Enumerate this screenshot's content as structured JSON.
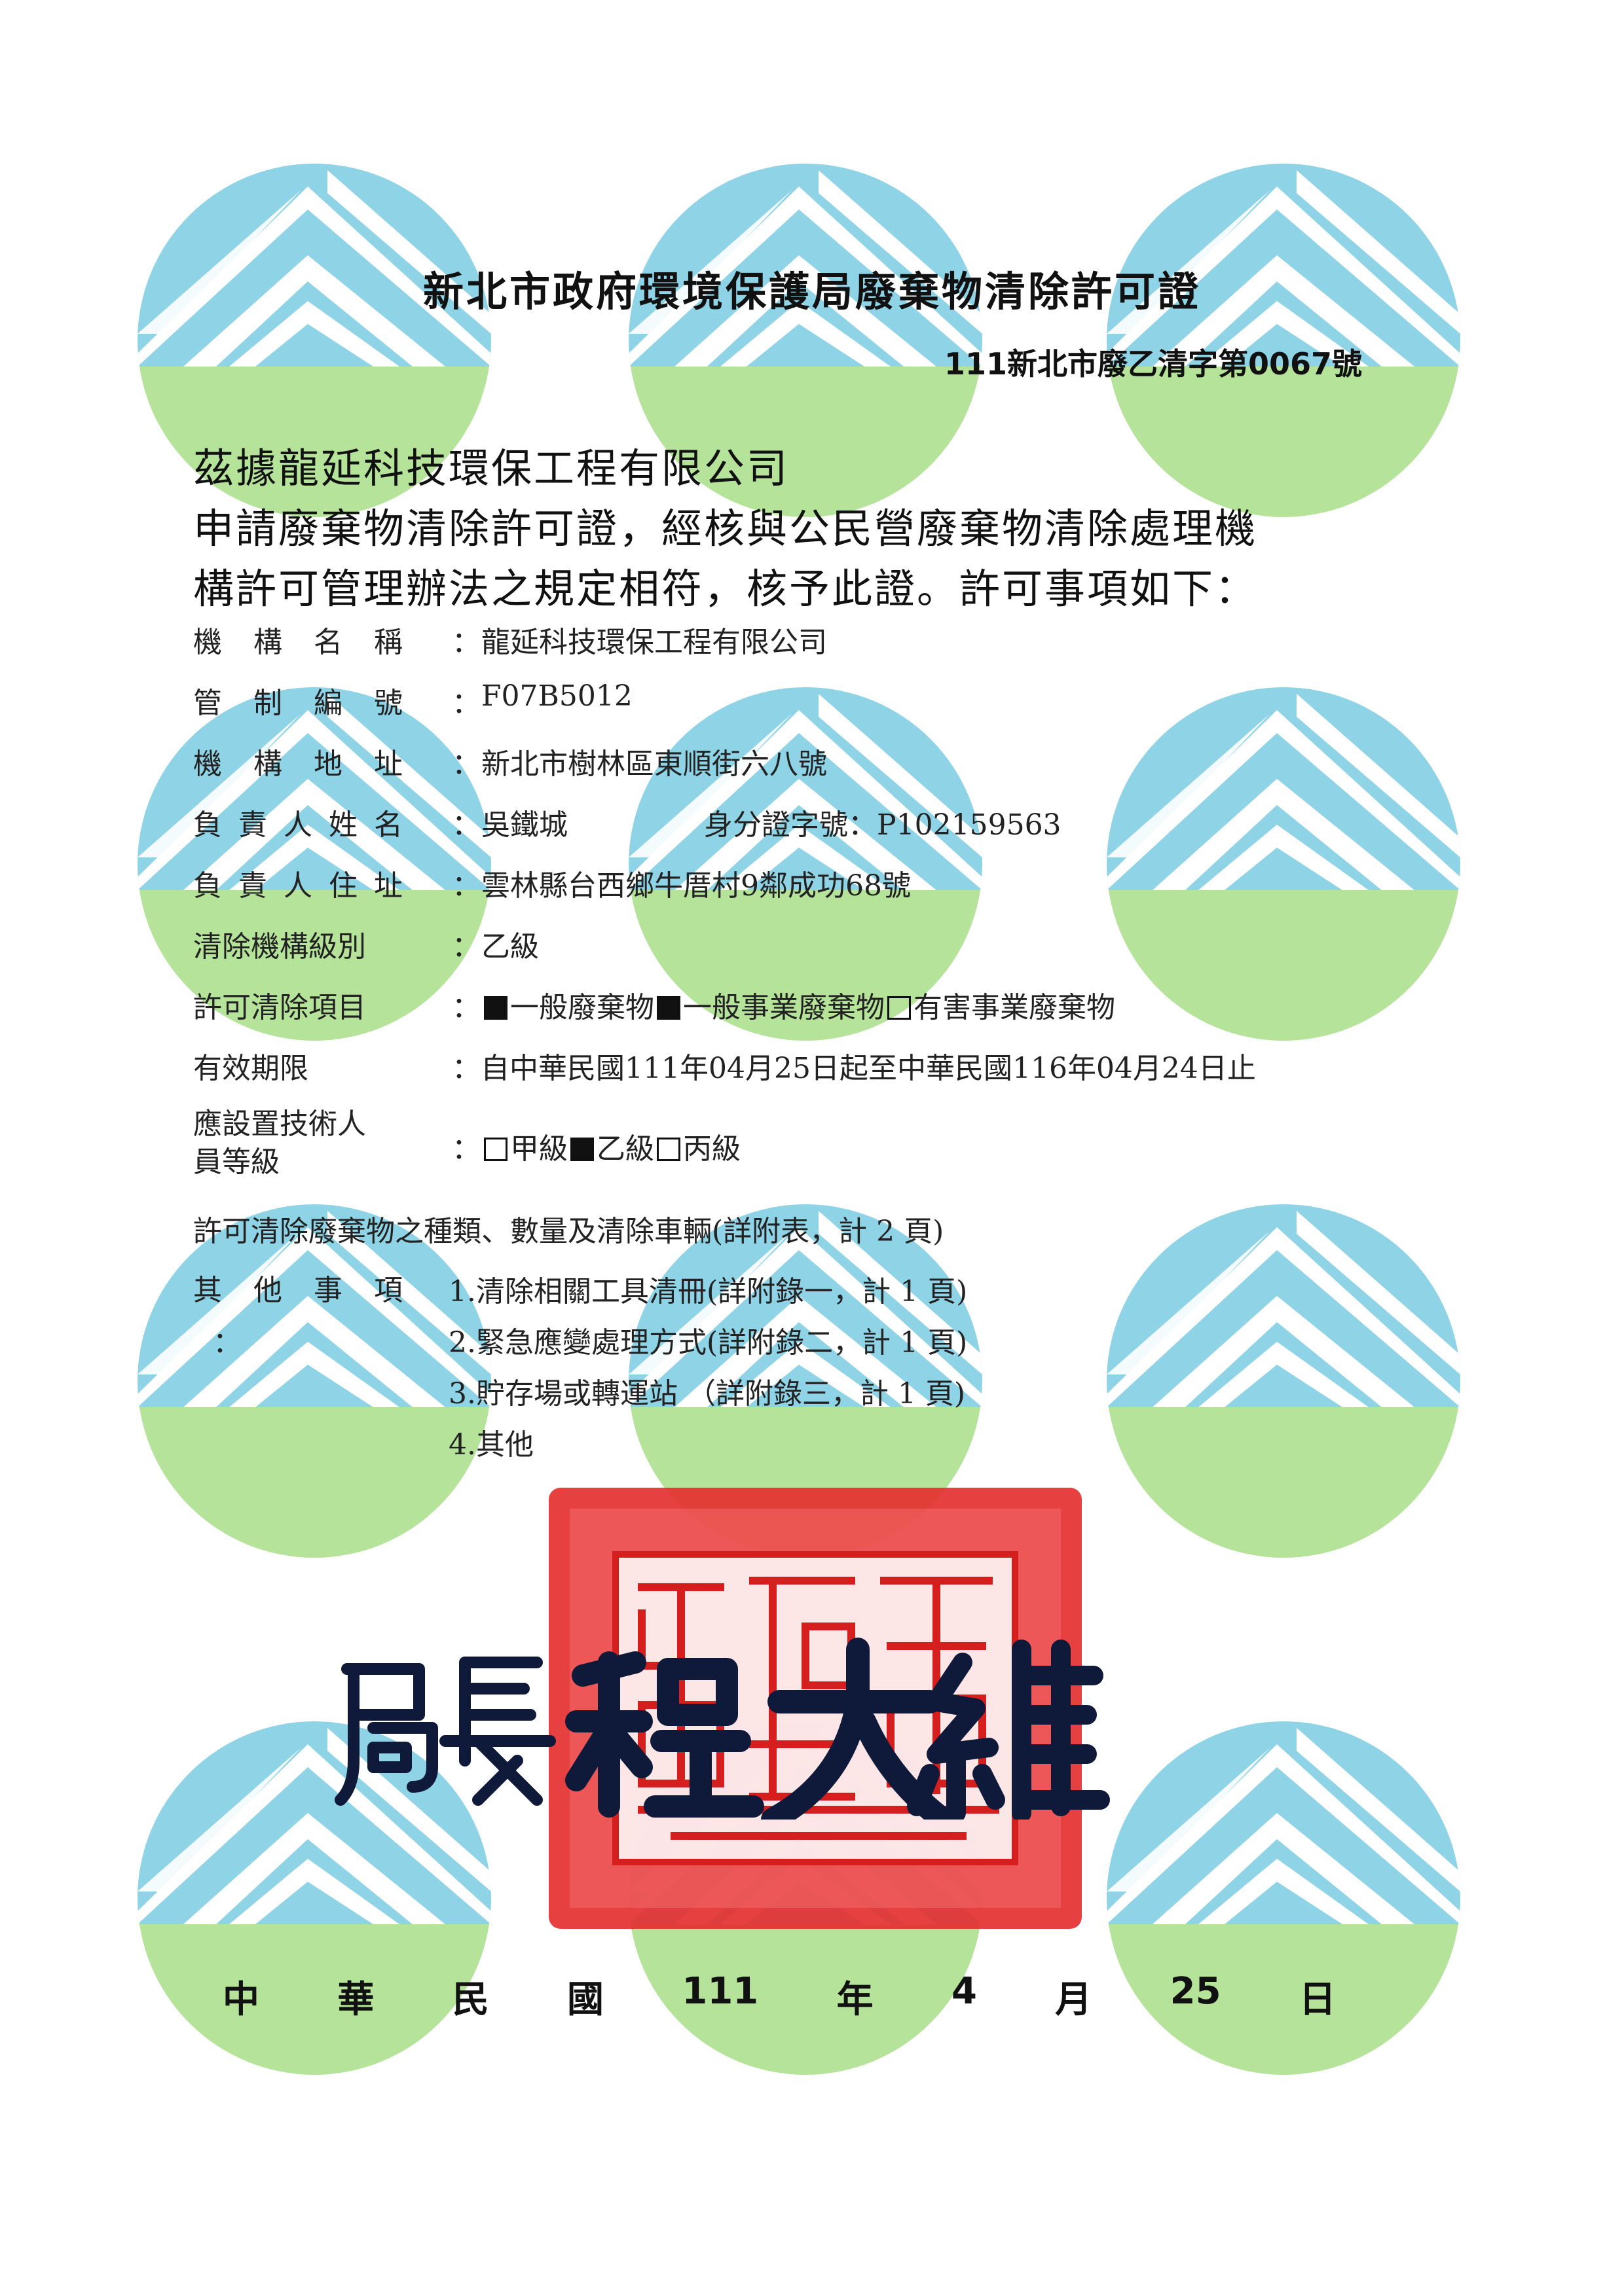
{
  "header": {
    "title": "新北市政府環境保護局廢棄物清除許可證",
    "cert_no": "111新北市廢乙清字第0067號"
  },
  "intro": {
    "line1": "茲據龍延科技環保工程有限公司",
    "line2": "申請廢棄物清除許可證，經核與公民營廢棄物清除處理機",
    "line3": "構許可管理辦法之規定相符，核予此證。許可事項如下："
  },
  "fields": {
    "org_name_label": "機構名稱",
    "org_name": "龍延科技環保工程有限公司",
    "control_no_label": "管制編號",
    "control_no": "F07B5012",
    "address_label": "機構地址",
    "address": "新北市樹林區東順街六八號",
    "owner_label": "負責人姓名",
    "owner": "吳鐵城",
    "id_label": "身分證字號：",
    "id_no": "P102159563",
    "owner_address_label": "負責人住址",
    "owner_address": "雲林縣台西鄉牛厝村9鄰成功68號",
    "level_label": "清除機構級別",
    "level": "乙級",
    "items_label": "許可清除項目",
    "item1": "一般廢棄物",
    "item2": "一般事業廢棄物",
    "item3": "有害事業廢棄物",
    "validity_label": "有效期限",
    "validity": "自中華民國111年04月25日起至中華民國116年04月24日止",
    "tech_label_1": "應設置技術人",
    "tech_label_2": "員等級",
    "tech1": "甲級",
    "tech2": "乙級",
    "tech3": "丙級",
    "colon": "："
  },
  "attachments": {
    "main": "許可清除廢棄物之種類、數量及清除車輛(詳附表，計 2 頁)",
    "other_label": "其他事項",
    "other_colon": "：",
    "items": [
      "1.清除相關工具清冊(詳附錄一，計 1 頁)",
      "2.緊急應變處理方式(詳附錄二，計 1 頁)",
      "3.貯存場或轉運站 （詳附錄三，計 1 頁)",
      "4.其他"
    ]
  },
  "signature": {
    "title": "局長",
    "name": "程大維",
    "seal_text": "新北市政府環境保護局"
  },
  "date": {
    "parts": [
      "中",
      "華",
      "民",
      "國",
      "111",
      "年",
      "4",
      "月",
      "25",
      "日"
    ]
  },
  "colors": {
    "logo_blue": "#8fd3e6",
    "logo_green": "#b5e39a",
    "seal_red": "#e53030",
    "signature_ink": "#0f1a3a",
    "checkbox_fill": "#111111"
  }
}
